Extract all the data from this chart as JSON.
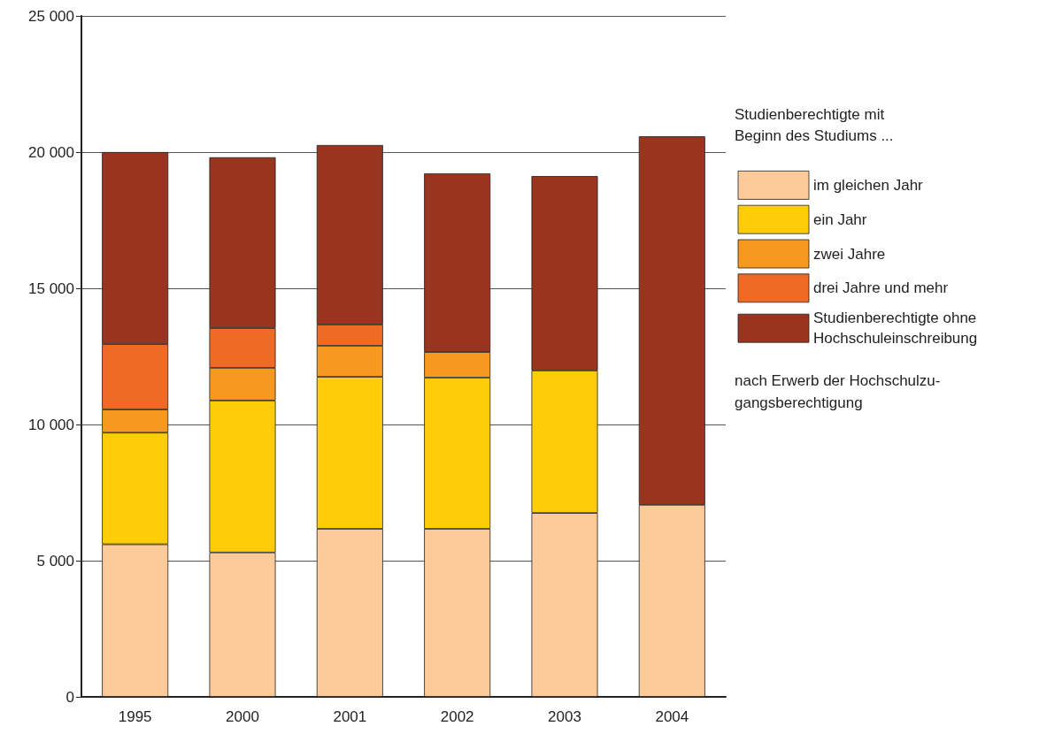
{
  "chart_data": {
    "type": "bar",
    "stacked": true,
    "legend_title": "Studienberechtigte mit Beginn des Studiums ...",
    "annotations": [
      "nach Erwerb der Hochschulzu-\ngangsberechtigung"
    ],
    "categories": [
      "1995",
      "2000",
      "2001",
      "2002",
      "2003",
      "2004"
    ],
    "series": [
      {
        "name": "im gleichen Jahr",
        "color": "#fdca9a",
        "values": [
          5600,
          5300,
          6170,
          6170,
          6750,
          7050
        ]
      },
      {
        "name": "ein Jahr",
        "color": "#ffcc0a",
        "values": [
          4100,
          5580,
          5580,
          5550,
          5230,
          null
        ]
      },
      {
        "name": "zwei Jahre",
        "color": "#f7981f",
        "values": [
          850,
          1200,
          1140,
          940,
          null,
          null
        ]
      },
      {
        "name": "drei Jahre und mehr",
        "color": "#ef6a25",
        "values": [
          2400,
          1460,
          780,
          null,
          null,
          null
        ]
      },
      {
        "name": "Studienberechtigte ohne Hochschuleinschreibung",
        "color": "#99341f",
        "values": [
          7050,
          6270,
          6590,
          6560,
          7140,
          13530
        ]
      }
    ],
    "ylim": [
      0,
      25000
    ],
    "yticks": [
      {
        "value": 0,
        "label": "0"
      },
      {
        "value": 5000,
        "label": "5 000"
      },
      {
        "value": 10000,
        "label": "10 000"
      },
      {
        "value": 15000,
        "label": "15 000"
      },
      {
        "value": 20000,
        "label": "20 000"
      },
      {
        "value": 25000,
        "label": "25 000"
      }
    ],
    "grid": "y",
    "legend": "right"
  }
}
